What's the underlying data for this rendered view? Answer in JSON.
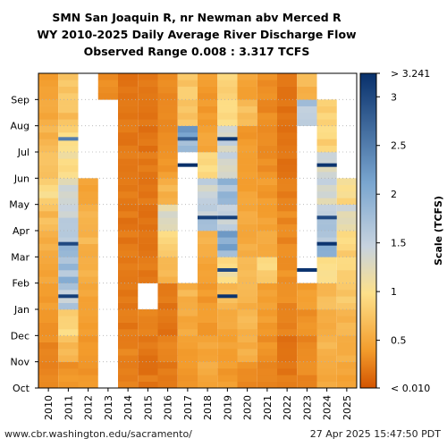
{
  "header": {
    "title_line1": "SMN San Joaquin R, nr Newman abv Merced R",
    "title_line2": "WY 2010-2025 Daily Average River Discharge Flow",
    "title_line3": "Observed Range 0.008 : 3.317 TCFS"
  },
  "footer": {
    "source": "www.cbr.washington.edu/sacramento/",
    "timestamp": "27 Apr 2025 15:47:50 PDT"
  },
  "colors": {
    "low": "#d35400",
    "mid_low": "#f39c2c",
    "mid": "#fde08a",
    "mid_high": "#c7d3df",
    "high_a": "#7aa6d0",
    "high": "#08306b",
    "missing": "#ffffff"
  },
  "chart_data": {
    "type": "heatmap",
    "title": "SMN San Joaquin R, nr Newman abv Merced R",
    "subtitle": "WY 2010-2025 Daily Average River Discharge Flow",
    "x": [
      "2010",
      "2011",
      "2012",
      "2013",
      "2014",
      "2015",
      "2016",
      "2017",
      "2018",
      "2019",
      "2020",
      "2021",
      "2022",
      "2023",
      "2024",
      "2025"
    ],
    "y_months": [
      "Oct",
      "Nov",
      "Dec",
      "Jan",
      "Feb",
      "Mar",
      "Apr",
      "May",
      "Jun",
      "Jul",
      "Aug",
      "Sep"
    ],
    "colorbar": {
      "label": "Scale (TCFS)",
      "ticks": [
        "> 3.241",
        "3",
        "2.5",
        "2",
        "1.5",
        "1",
        "0.5",
        "< 0.010"
      ],
      "tick_values": [
        3.241,
        3,
        2.5,
        2,
        1.5,
        1,
        0.5,
        0.01
      ],
      "range": [
        0.01,
        3.241
      ]
    },
    "observed_range": [
      0.008,
      3.317
    ],
    "grid": true,
    "monthly_values": [
      [
        0.3,
        0.3,
        0.35,
        0.4,
        0.45,
        0.55,
        0.65,
        0.9,
        0.8,
        0.6,
        0.5,
        0.4
      ],
      [
        0.35,
        0.7,
        0.9,
        1.6,
        1.8,
        1.7,
        1.6,
        1.3,
        1.0,
        0.9,
        0.7,
        0.8
      ],
      [
        0.35,
        0.4,
        0.45,
        0.5,
        0.55,
        0.6,
        0.55,
        0.5,
        null,
        null,
        null,
        null
      ],
      [
        null,
        null,
        null,
        null,
        null,
        null,
        null,
        null,
        null,
        null,
        null,
        0.3
      ],
      [
        0.25,
        0.25,
        0.2,
        0.2,
        0.2,
        0.2,
        0.2,
        0.25,
        0.2,
        0.2,
        0.2,
        0.2
      ],
      [
        0.2,
        0.2,
        0.3,
        null,
        0.2,
        0.2,
        0.2,
        0.2,
        0.2,
        0.2,
        0.2,
        0.2
      ],
      [
        0.2,
        0.25,
        0.2,
        0.2,
        0.6,
        0.9,
        1.3,
        0.6,
        0.4,
        0.3,
        0.3,
        0.3
      ],
      [
        0.35,
        0.4,
        0.5,
        0.6,
        null,
        null,
        null,
        null,
        null,
        2.0,
        0.7,
        0.8
      ],
      [
        0.5,
        0.5,
        0.4,
        0.4,
        0.5,
        0.6,
        1.6,
        1.4,
        0.9,
        0.5,
        0.4,
        0.4
      ],
      [
        0.4,
        0.45,
        0.5,
        0.7,
        1.0,
        2.0,
        1.4,
        1.8,
        1.4,
        1.5,
        0.9,
        0.9
      ],
      [
        0.3,
        0.55,
        0.6,
        0.6,
        0.6,
        0.55,
        0.5,
        0.45,
        0.4,
        0.4,
        0.7,
        0.45
      ],
      [
        0.3,
        0.35,
        0.4,
        0.45,
        0.85,
        0.5,
        0.45,
        0.4,
        0.35,
        0.3,
        0.3,
        0.3
      ],
      [
        0.2,
        0.2,
        0.25,
        0.3,
        0.35,
        0.3,
        0.3,
        0.25,
        0.2,
        0.2,
        0.2,
        0.2
      ],
      [
        0.3,
        0.3,
        0.35,
        0.4,
        null,
        null,
        null,
        null,
        null,
        null,
        1.6,
        0.6
      ],
      [
        0.5,
        0.6,
        0.5,
        0.7,
        0.9,
        1.8,
        1.6,
        1.4,
        1.3,
        0.9,
        0.8,
        null
      ],
      [
        0.45,
        0.55,
        0.65,
        0.8,
        0.85,
        0.9,
        1.3,
        1.0,
        null,
        null,
        null,
        null
      ]
    ],
    "highlights": [
      {
        "year": "2011",
        "month": "Jan",
        "value": 3.1
      },
      {
        "year": "2011",
        "month": "Mar",
        "value": 3.0
      },
      {
        "year": "2011",
        "month": "Jul",
        "value": 2.5
      },
      {
        "year": "2017",
        "month": "Jun",
        "value": 3.3
      },
      {
        "year": "2017",
        "month": "Jul",
        "value": 2.8
      },
      {
        "year": "2018",
        "month": "Apr",
        "value": 3.1
      },
      {
        "year": "2019",
        "month": "Jan",
        "value": 3.2
      },
      {
        "year": "2019",
        "month": "Feb",
        "value": 3.0
      },
      {
        "year": "2019",
        "month": "Apr",
        "value": 3.1
      },
      {
        "year": "2019",
        "month": "Jul",
        "value": 3.2
      },
      {
        "year": "2023",
        "month": "Feb",
        "value": 3.2
      },
      {
        "year": "2024",
        "month": "Mar",
        "value": 3.2
      },
      {
        "year": "2024",
        "month": "Apr",
        "value": 3.0
      },
      {
        "year": "2024",
        "month": "Jun",
        "value": 3.2
      }
    ]
  }
}
